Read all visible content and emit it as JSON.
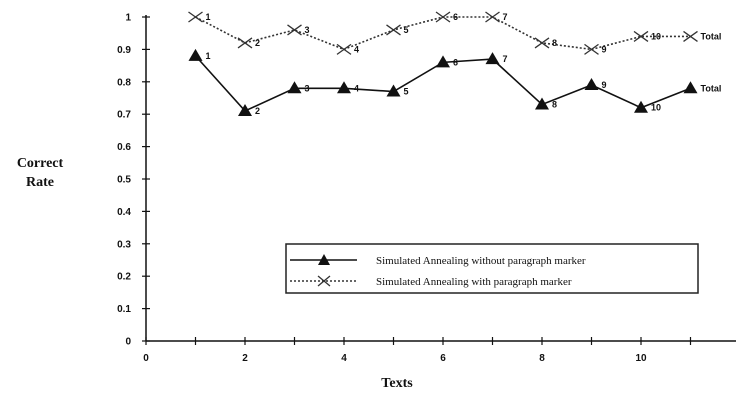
{
  "chart_data": {
    "type": "line",
    "xlabel": "Texts",
    "ylabel": [
      "Correct",
      "Rate"
    ],
    "xlim": [
      0,
      12
    ],
    "ylim": [
      0,
      1
    ],
    "x_ticks": [
      "0",
      "2",
      "4",
      "6",
      "8",
      "10"
    ],
    "y_ticks": [
      "0",
      "0.1",
      "0.2",
      "0.3",
      "0.4",
      "0.5",
      "0.6",
      "0.7",
      "0.8",
      "0.9",
      "1"
    ],
    "grid": false,
    "legend_position": "lower-right",
    "series": [
      {
        "name": "Simulated Annealing without paragraph marker",
        "marker": "triangle",
        "line_style": "solid",
        "color": "#111111",
        "x": [
          1,
          2,
          3,
          4,
          5,
          6,
          7,
          8,
          9,
          10,
          11
        ],
        "values": [
          0.88,
          0.71,
          0.78,
          0.78,
          0.77,
          0.86,
          0.87,
          0.73,
          0.79,
          0.72,
          0.78
        ],
        "point_labels": [
          "1",
          "2",
          "3",
          "4",
          "5",
          "6",
          "7",
          "8",
          "9",
          "10",
          "Total"
        ]
      },
      {
        "name": "Simulated Annealing with paragraph marker",
        "marker": "x-cross",
        "line_style": "dotted",
        "color": "#333333",
        "x": [
          1,
          2,
          3,
          4,
          5,
          6,
          7,
          8,
          9,
          10,
          11
        ],
        "values": [
          1.0,
          0.92,
          0.96,
          0.9,
          0.96,
          1.0,
          1.0,
          0.92,
          0.9,
          0.94,
          0.94
        ],
        "point_labels": [
          "1",
          "2",
          "3",
          "4",
          "5",
          "6",
          "7",
          "8",
          "9",
          "10",
          "Total"
        ]
      }
    ]
  }
}
